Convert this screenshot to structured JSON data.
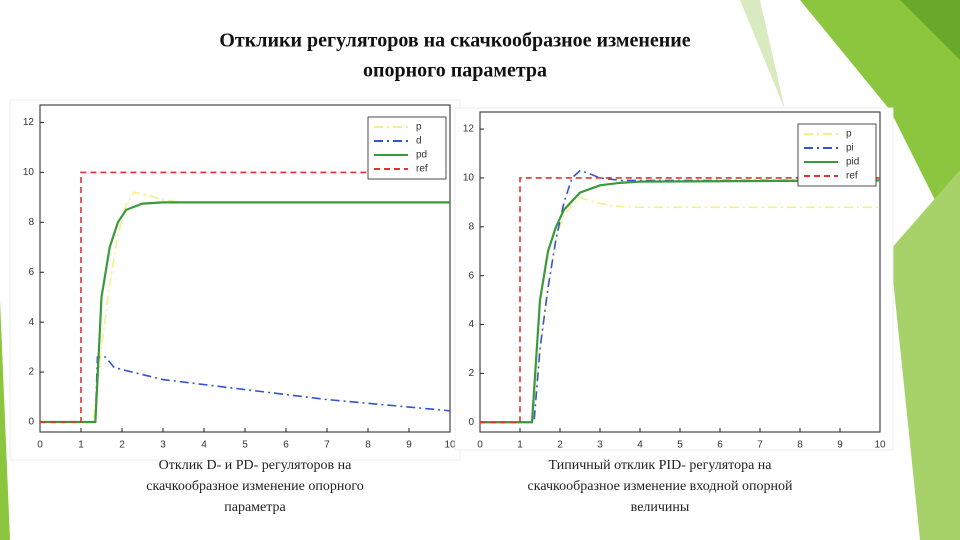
{
  "title": [
    "Отклики регуляторов на скачкообразное изменение",
    "опорного параметра"
  ],
  "chart_data": [
    {
      "type": "line",
      "caption": [
        "Отклик D- и PD- регуляторов на",
        "скачкообразное изменение опорного",
        "параметра"
      ],
      "xlim": [
        0,
        10
      ],
      "ylim": [
        -0.4,
        12.7
      ],
      "xticks": [
        0,
        1,
        2,
        3,
        4,
        5,
        6,
        7,
        8,
        9,
        10
      ],
      "yticks": [
        0,
        2,
        4,
        6,
        8,
        10,
        12
      ],
      "legend": "upper right",
      "series": [
        {
          "name": "p",
          "color": "#f2f08a",
          "style": "dashdot",
          "x": [
            0,
            1.3,
            1.5,
            1.7,
            1.9,
            2.1,
            2.3,
            2.6,
            3,
            3.5,
            10
          ],
          "values": [
            0,
            0,
            3,
            5.5,
            7.5,
            8.7,
            9.2,
            9.1,
            8.9,
            8.8,
            8.8
          ]
        },
        {
          "name": "d",
          "color": "#3355cc",
          "style": "dashdot",
          "x": [
            0,
            1.35,
            1.4,
            1.6,
            1.8,
            2,
            3,
            4,
            5,
            6,
            7,
            8,
            9,
            10
          ],
          "values": [
            0,
            0,
            2.6,
            2.6,
            2.2,
            2.1,
            1.7,
            1.5,
            1.3,
            1.1,
            0.9,
            0.75,
            0.6,
            0.45
          ]
        },
        {
          "name": "pd",
          "color": "#3a9a3a",
          "style": "solid",
          "x": [
            0,
            1.35,
            1.5,
            1.7,
            1.9,
            2.1,
            2.5,
            3,
            3.5,
            10
          ],
          "values": [
            0,
            0,
            5,
            7,
            8,
            8.5,
            8.75,
            8.8,
            8.8,
            8.8
          ]
        },
        {
          "name": "ref",
          "color": "#dd3333",
          "style": "dashed",
          "x": [
            0,
            1,
            1,
            10
          ],
          "values": [
            0,
            0,
            10,
            10
          ]
        }
      ]
    },
    {
      "type": "line",
      "caption": [
        "Типичный отклик PID- регулятора на",
        "скачкообразное изменение входной опорной",
        "величины"
      ],
      "xlim": [
        0,
        10
      ],
      "ylim": [
        -0.4,
        12.7
      ],
      "xticks": [
        0,
        1,
        2,
        3,
        4,
        5,
        6,
        7,
        8,
        9,
        10
      ],
      "yticks": [
        0,
        2,
        4,
        6,
        8,
        10,
        12
      ],
      "legend": "upper right",
      "series": [
        {
          "name": "p",
          "color": "#f2f08a",
          "style": "dashdot",
          "x": [
            0,
            1.3,
            1.5,
            1.7,
            1.9,
            2.1,
            2.5,
            2.9,
            3.3,
            4,
            10
          ],
          "values": [
            0,
            0,
            3,
            5.5,
            7.5,
            8.5,
            9.2,
            9,
            8.85,
            8.8,
            8.8
          ]
        },
        {
          "name": "pi",
          "color": "#3355cc",
          "style": "dashdot",
          "x": [
            0,
            1.35,
            1.5,
            1.7,
            1.9,
            2.1,
            2.3,
            2.5,
            2.7,
            3,
            3.5,
            4,
            10
          ],
          "values": [
            0,
            0,
            3,
            5.5,
            7.5,
            9,
            10,
            10.3,
            10.2,
            10,
            9.9,
            9.9,
            9.9
          ]
        },
        {
          "name": "pid",
          "color": "#3a9a3a",
          "style": "solid",
          "x": [
            0,
            1.3,
            1.5,
            1.7,
            1.9,
            2.1,
            2.5,
            3,
            3.5,
            4,
            10
          ],
          "values": [
            0,
            0,
            5,
            7,
            8,
            8.7,
            9.4,
            9.7,
            9.8,
            9.85,
            9.9
          ]
        },
        {
          "name": "ref",
          "color": "#dd3333",
          "style": "dashed",
          "x": [
            0,
            1,
            1,
            10
          ],
          "values": [
            0,
            0,
            10,
            10
          ]
        }
      ]
    }
  ]
}
